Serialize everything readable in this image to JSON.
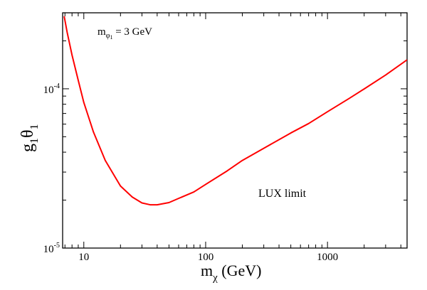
{
  "chart_data": {
    "type": "line",
    "xscale": "log",
    "yscale": "log",
    "xlim": [
      6.7,
      4500
    ],
    "ylim": [
      1e-05,
      0.0003
    ],
    "x_ticks": [
      {
        "value": 10,
        "label": "10"
      },
      {
        "value": 100,
        "label": "100"
      },
      {
        "value": 1000,
        "label": "1000"
      }
    ],
    "y_ticks": [
      {
        "value": 1e-05,
        "mantissa": "10",
        "exponent": "-5"
      },
      {
        "value": 0.0001,
        "mantissa": "10",
        "exponent": "-4"
      }
    ],
    "xlabel": {
      "main": "m",
      "sub": "χ",
      "units": " (GeV)"
    },
    "ylabel": {
      "g": "g",
      "g_sub": "1",
      "theta": "θ",
      "theta_sub": "1"
    },
    "annotation": {
      "m": "m",
      "phi": "φ",
      "phi_sub": "1",
      "rest": " = 3 GeV"
    },
    "series": [
      {
        "name": "LUX limit",
        "color": "#ff0000",
        "x": [
          6.9,
          7.3,
          8.0,
          9.0,
          10.0,
          12.0,
          15.0,
          20.0,
          25.0,
          30.0,
          35.0,
          40.0,
          50.0,
          60.0,
          80.0,
          100.0,
          150.0,
          200.0,
          300.0,
          500.0,
          700.0,
          1000.0,
          1500.0,
          2000.0,
          3000.0,
          4500.0
        ],
        "y": [
          0.000285,
          0.000226,
          0.000163,
          0.000113,
          8.2e-05,
          5.35e-05,
          3.55e-05,
          2.45e-05,
          2.09e-05,
          1.92e-05,
          1.87e-05,
          1.87e-05,
          1.93e-05,
          2.05e-05,
          2.25e-05,
          2.51e-05,
          3.05e-05,
          3.55e-05,
          4.23e-05,
          5.28e-05,
          6.05e-05,
          7.18e-05,
          8.68e-05,
          9.98e-05,
          0.000122,
          0.000152
        ]
      }
    ]
  }
}
